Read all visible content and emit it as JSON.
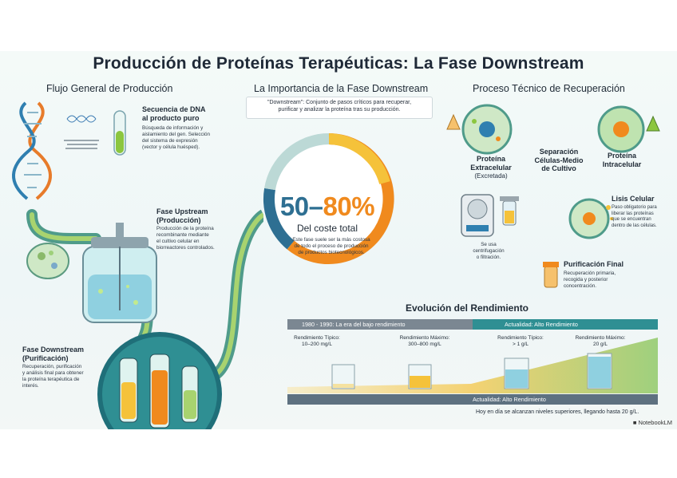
{
  "title": "Producción de Proteínas Terapéuticas: La Fase Downstream",
  "sections": {
    "flow": "Flujo General de Producción",
    "importance": "La Importancia de la Fase Downstream",
    "process": "Proceso Técnico de Recuperación",
    "evolution": "Evolución del Rendimiento"
  },
  "flow": {
    "dna_title": "Secuencia de DNA\nal producto puro",
    "dna_desc": "Búsqueda de información y\naislamiento del gen. Selección\ndel sistema de expresión\n(vector y célula huésped).",
    "upstream_title": "Fase Upstream\n(Producción)",
    "upstream_desc": "Producción de la proteína\nrecombinante mediante\nel cultivo celular en\nbiorreactores controlados.",
    "downstream_title": "Fase Downstream\n(Purificación)",
    "downstream_desc": "Recuperación, purificación\ny análisis final para obtener\nla proteína terapéutica de\ninterés."
  },
  "importance": {
    "definition": "\"Downstream\": Conjunto de pasos críticos para recuperar,\npurificar y analizar la proteína tras su producción.",
    "pct_low": "50",
    "pct_dash": "–",
    "pct_high": "80%",
    "cost_label": "Del coste total",
    "cost_desc": "Este fase suele ser la más costosa\nde todo el proceso de producción\nde productos biotecnológicos."
  },
  "process": {
    "extracellular": "Proteína\nExtracelular",
    "extracellular_note": "(Excretada)",
    "separation": "Separación\nCélulas-Medio\nde Cultivo",
    "intracellular": "Proteína\nIntracelular",
    "lysis_title": "Lisis Celular",
    "lysis_desc": "Paso obligatorio para\nliberar las proteínas\nque se encuentran\ndentro de las células.",
    "centrifuge_note": "Se usa\ncentrifugación\no filtración.",
    "purification_title": "Purificación Final",
    "purification_desc": "Recuperación primaria,\nrecogida y posterior\nconcentración."
  },
  "evolution": {
    "era_old": "1980 - 1990: La era del bajo rendimiento",
    "era_new": "Actualidad: Alto Rendimiento",
    "bottom_band": "Actualidad: Alto Rendimiento",
    "old_typical_label": "Rendimiento Típico:",
    "old_typical_value": "10–200 mg/L",
    "old_max_label": "Rendimiento Máximo:",
    "old_max_value": "300–800 mg/L",
    "new_typical_label": "Rendimiento Típico:",
    "new_typical_value": "> 1 g/L",
    "new_max_label": "Rendimiento Máximo:",
    "new_max_value": "20 g/L",
    "footer": "Hoy en día se alcanzan niveles superiores, llegando hasta 20 g/L."
  },
  "brand": "NotebookLM",
  "colors": {
    "teal": "#2f8f93",
    "blue": "#2e6f92",
    "orange": "#f08a1e",
    "yellow": "#f5c23a",
    "green": "#7bbf4a"
  }
}
